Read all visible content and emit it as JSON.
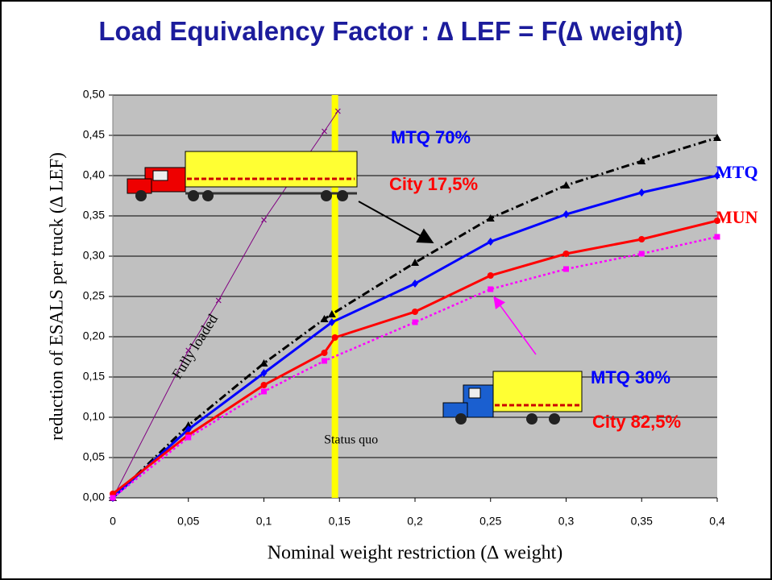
{
  "chart_data": {
    "type": "line",
    "title": "Load Equivalency Factor :  ∆ LEF = F(∆ weight)",
    "x_label": "Nominal weight restriction (∆ weight)",
    "y_label": "reduction of ESALS per truck (∆ LEF)",
    "xlim": [
      0,
      0.4
    ],
    "ylim": [
      0,
      0.5
    ],
    "xticks": [
      0,
      {
        "value": 0.05,
        "label": "0,05"
      },
      {
        "value": 0.1,
        "label": "0,1"
      },
      {
        "value": 0.15,
        "label": "0,15"
      },
      {
        "value": 0.2,
        "label": "0,2"
      },
      {
        "value": 0.25,
        "label": "0,25"
      },
      {
        "value": 0.3,
        "label": "0,3"
      },
      {
        "value": 0.35,
        "label": "0,35"
      },
      {
        "value": 0.4,
        "label": "0,4"
      }
    ],
    "yticks": [
      {
        "value": 0,
        "label": "0,00"
      },
      {
        "value": 0.05,
        "label": "0,05"
      },
      {
        "value": 0.1,
        "label": "0,10"
      },
      {
        "value": 0.15,
        "label": "0,15"
      },
      {
        "value": 0.2,
        "label": "0,20"
      },
      {
        "value": 0.25,
        "label": "0,25"
      },
      {
        "value": 0.3,
        "label": "0,30"
      },
      {
        "value": 0.35,
        "label": "0,35"
      },
      {
        "value": 0.4,
        "label": "0,40"
      },
      {
        "value": 0.45,
        "label": "0,45"
      },
      {
        "value": 0.5,
        "label": "0,50"
      }
    ],
    "grid": true,
    "series": [
      {
        "name": "Fully loaded",
        "color": "#800080",
        "style": "thin",
        "marker": "x",
        "x": [
          0,
          0.05,
          0.07,
          0.1,
          0.14,
          0.149
        ],
        "values": [
          0,
          0.183,
          0.245,
          0.345,
          0.455,
          0.48
        ]
      },
      {
        "color": "#000000",
        "style": "dash-dot",
        "marker": "triangle",
        "x": [
          0,
          0.05,
          0.1,
          0.14,
          0.145,
          0.2,
          0.25,
          0.3,
          0.35,
          0.4
        ],
        "values": [
          0,
          0.09,
          0.167,
          0.222,
          0.228,
          0.292,
          0.347,
          0.388,
          0.418,
          0.447
        ]
      },
      {
        "name": "MTQ",
        "color": "#0000ff",
        "style": "solid",
        "marker": "diamond",
        "x": [
          0,
          0.05,
          0.1,
          0.145,
          0.2,
          0.25,
          0.3,
          0.35,
          0.4
        ],
        "values": [
          0,
          0.085,
          0.155,
          0.218,
          0.266,
          0.318,
          0.352,
          0.379,
          0.4
        ]
      },
      {
        "name": "MUN",
        "color": "#ff0000",
        "style": "solid",
        "marker": "circle",
        "x": [
          0,
          0.05,
          0.1,
          0.14,
          0.147,
          0.2,
          0.25,
          0.3,
          0.35,
          0.4
        ],
        "values": [
          0.005,
          0.078,
          0.14,
          0.18,
          0.199,
          0.231,
          0.276,
          0.303,
          0.321,
          0.344
        ]
      },
      {
        "color": "#ff00ff",
        "style": "dotted",
        "marker": "square",
        "x": [
          0,
          0.05,
          0.1,
          0.14,
          0.2,
          0.25,
          0.3,
          0.35,
          0.4
        ],
        "values": [
          0,
          0.075,
          0.132,
          0.17,
          0.218,
          0.259,
          0.284,
          0.303,
          0.324
        ]
      }
    ],
    "status_quo": {
      "x": 0.147,
      "label": "Status quo",
      "color": "#ffff00"
    },
    "annotations": {
      "mtq_70": "MTQ  70%",
      "city_17": "City 17,5%",
      "mtq_30": "MTQ  30%",
      "city_82": "City 82,5%"
    }
  }
}
